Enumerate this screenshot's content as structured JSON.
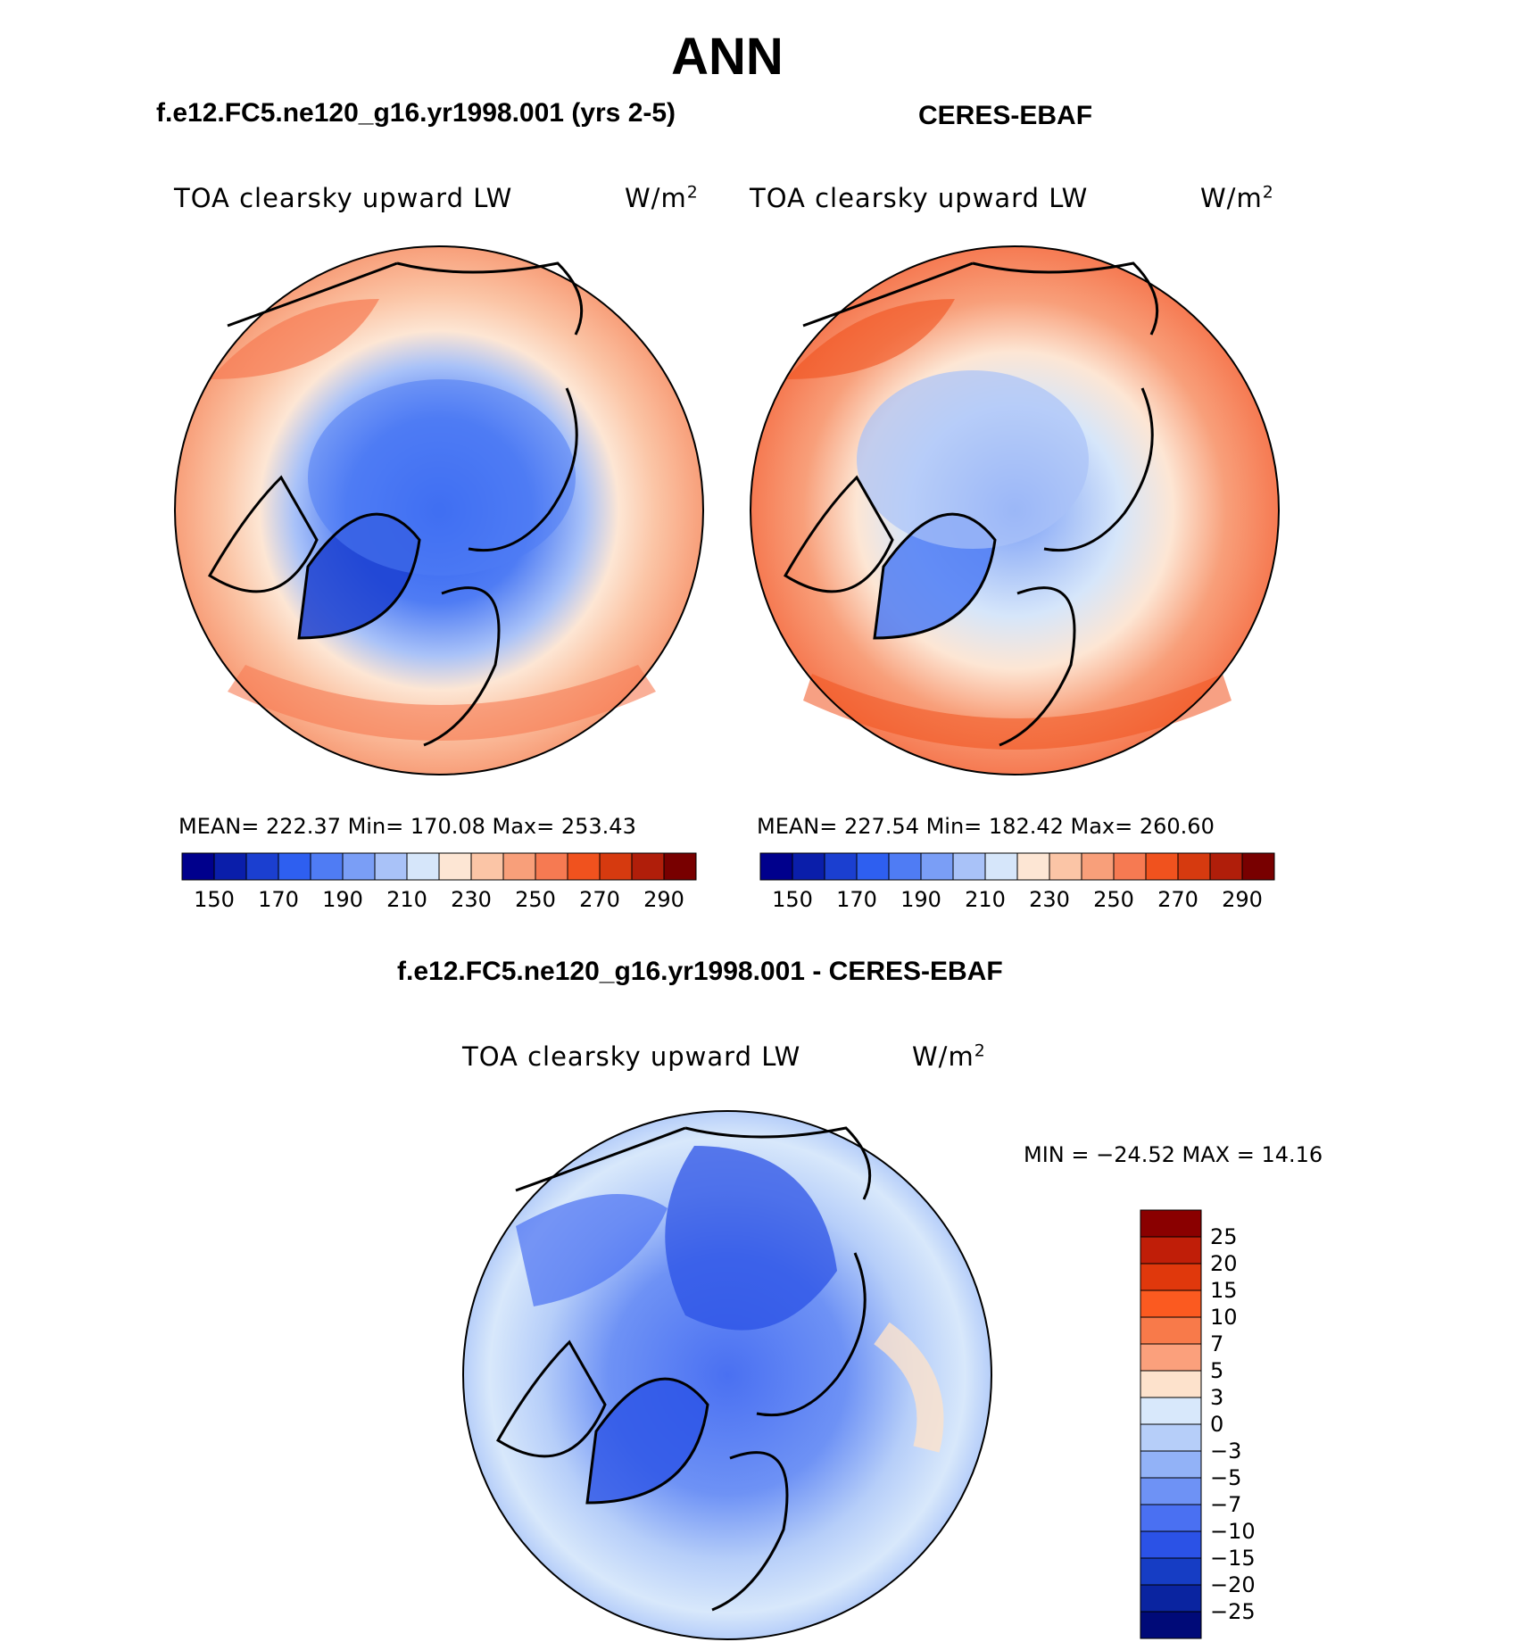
{
  "figure": {
    "title": "ANN",
    "variable_label": "TOA clearsky upward LW",
    "units_base": "W/m",
    "units_exp": "2"
  },
  "panels": {
    "model": {
      "title": "f.e12.FC5.ne120_g16.yr1998.001 (yrs 2-5)",
      "stats_text": "MEAN= 222.37   Min= 170.08   Max= 253.43",
      "mean": 222.37,
      "min": 170.08,
      "max": 253.43
    },
    "obs": {
      "title": "CERES-EBAF",
      "stats_text": "MEAN= 227.54   Min= 182.42   Max= 260.60",
      "mean": 227.54,
      "min": 182.42,
      "max": 260.6
    },
    "diff": {
      "title": "f.e12.FC5.ne120_g16.yr1998.001 - CERES-EBAF",
      "stats_text": "MIN = −24.52 MAX =   14.16",
      "min": -24.52,
      "max": 14.16
    }
  },
  "colorbar_abs": {
    "tick_labels": [
      "150",
      "170",
      "190",
      "210",
      "230",
      "250",
      "270",
      "290"
    ],
    "colors": [
      "#00008c",
      "#0a1eaa",
      "#1b3fd0",
      "#2e5ff0",
      "#4f7cf4",
      "#7a9ef6",
      "#a9c2f8",
      "#d6e6fa",
      "#fde6d4",
      "#fbc5a6",
      "#f89f7a",
      "#f67a52",
      "#f0521e",
      "#d63a0f",
      "#b01e0a",
      "#780000"
    ]
  },
  "colorbar_diff": {
    "tick_labels": [
      "25",
      "20",
      "15",
      "10",
      "7",
      "5",
      "3",
      "0",
      "−3",
      "−5",
      "−7",
      "−10",
      "−15",
      "−20",
      "−25"
    ],
    "colors": [
      "#8a0000",
      "#c01e08",
      "#e0380c",
      "#fb5a20",
      "#f87a4a",
      "#fba07c",
      "#fde2cc",
      "#d8e8fb",
      "#b6cef9",
      "#92b2f7",
      "#6e92f5",
      "#4a70f2",
      "#2b52e6",
      "#163dc4",
      "#0a24a0",
      "#000a78"
    ]
  }
}
